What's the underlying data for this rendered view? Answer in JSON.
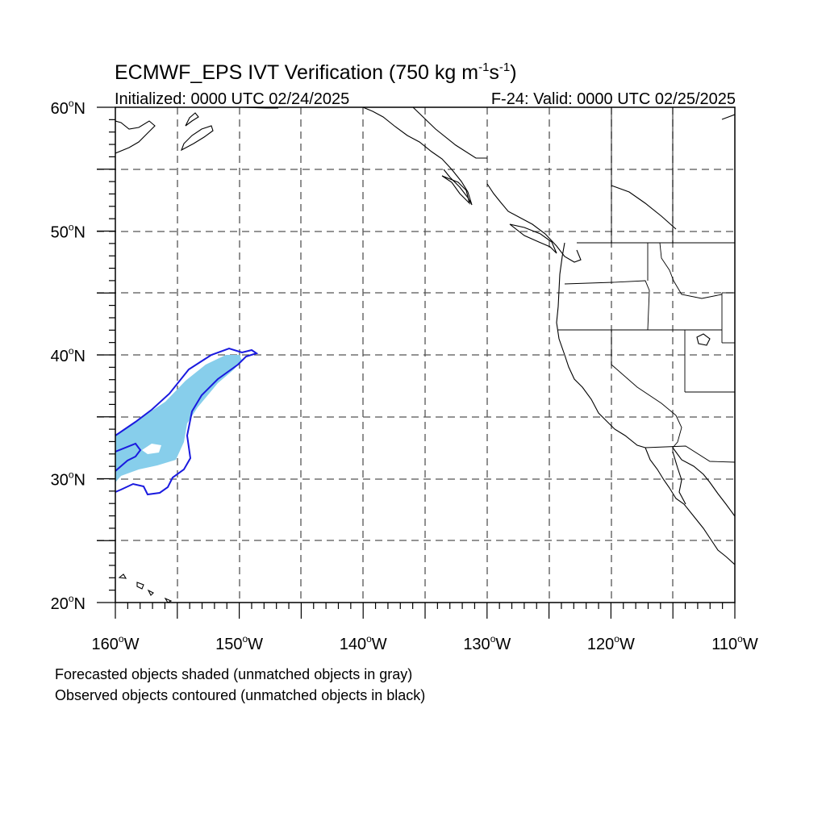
{
  "title": {
    "main": "ECMWF_EPS IVT Verification (750 kg m",
    "sup1": "-1",
    "mid": "s",
    "sup2": "-1",
    "end": ")"
  },
  "subtitle_left": "Initialized: 0000 UTC 02/24/2025",
  "subtitle_right": "F-24: Valid: 0000 UTC 02/25/2025",
  "lat_labels": [
    {
      "deg": "60",
      "hem": "N"
    },
    {
      "deg": "50",
      "hem": "N"
    },
    {
      "deg": "40",
      "hem": "N"
    },
    {
      "deg": "30",
      "hem": "N"
    },
    {
      "deg": "20",
      "hem": "N"
    }
  ],
  "lon_labels": [
    {
      "deg": "160",
      "hem": "W"
    },
    {
      "deg": "150",
      "hem": "W"
    },
    {
      "deg": "140",
      "hem": "W"
    },
    {
      "deg": "130",
      "hem": "W"
    },
    {
      "deg": "120",
      "hem": "W"
    },
    {
      "deg": "110",
      "hem": "W"
    }
  ],
  "notes": [
    "Forecasted objects shaded (unmatched objects in gray)",
    "Observed objects contoured (unmatched objects in black)"
  ],
  "map": {
    "lon_range": [
      -160,
      -110
    ],
    "lat_range": [
      20,
      60
    ],
    "grid_step_deg": 5,
    "grid": "dashed",
    "colors": {
      "forecast_matched": "#87ceeb",
      "observed_matched": "#1a1adf",
      "land_outline": "#000000",
      "grid": "#555555"
    }
  }
}
